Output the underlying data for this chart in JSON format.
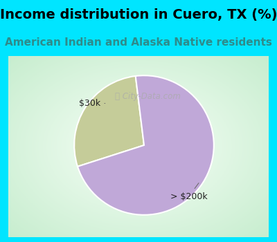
{
  "title": "Income distribution in Cuero, TX (%)",
  "subtitle": "American Indian and Alaska Native residents",
  "title_color": "#000000",
  "subtitle_color": "#2e8b8b",
  "bg_color": "#00e5ff",
  "chart_bg_center": "#f5fff5",
  "chart_bg_edge": "#c8e8c8",
  "slices": [
    28.0,
    72.0
  ],
  "slice_colors": [
    "#c5cc99",
    "#c0a8d8"
  ],
  "slice_labels": [
    "$30k",
    "> $200k"
  ],
  "start_angle": 97,
  "watermark": "ⓘ City-Data.com",
  "title_fontsize": 14,
  "subtitle_fontsize": 11
}
